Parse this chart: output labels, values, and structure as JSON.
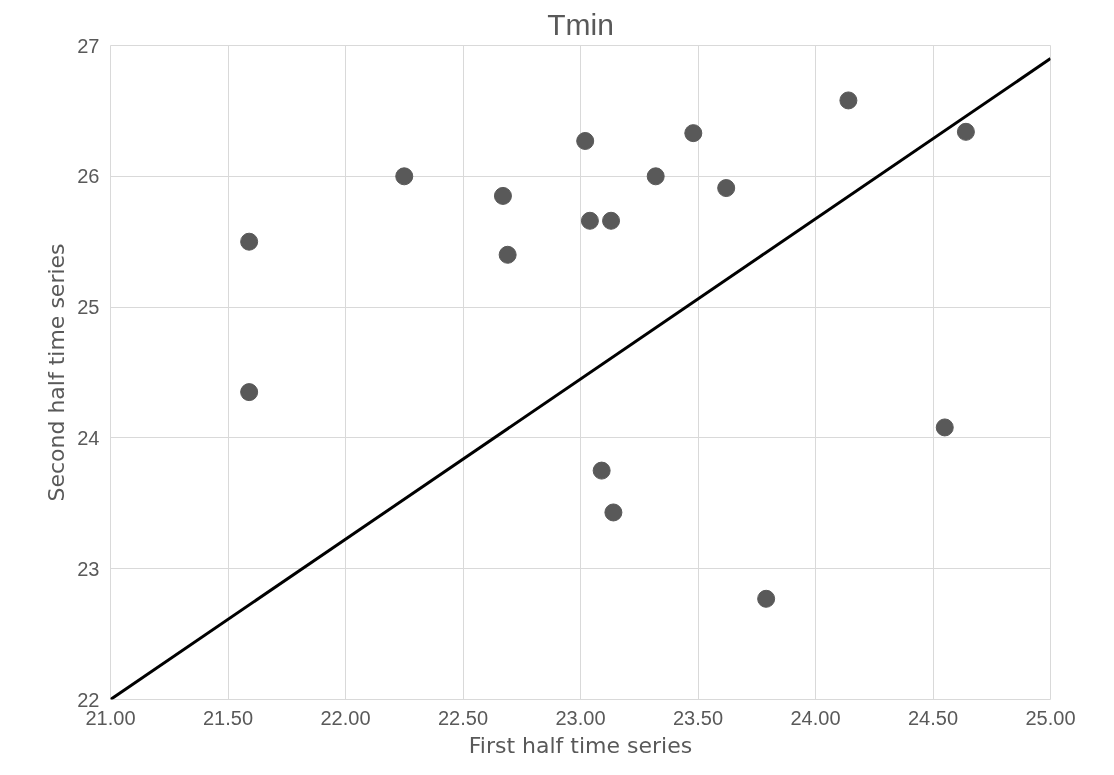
{
  "chart_data": {
    "type": "scatter",
    "title": "Tmin",
    "xlabel": "First half time series",
    "ylabel": "Second half time series",
    "xlim": [
      21,
      25
    ],
    "ylim": [
      22,
      27
    ],
    "xticks": [
      {
        "value": 21,
        "label": "21.00"
      },
      {
        "value": 21.5,
        "label": "21.50"
      },
      {
        "value": 22,
        "label": "22.00"
      },
      {
        "value": 22.5,
        "label": "22.50"
      },
      {
        "value": 23,
        "label": "23.00"
      },
      {
        "value": 23.5,
        "label": "23.50"
      },
      {
        "value": 24,
        "label": "24.00"
      },
      {
        "value": 24.5,
        "label": "24.50"
      },
      {
        "value": 25,
        "label": "25.00"
      }
    ],
    "yticks": [
      22,
      23,
      24,
      25,
      26,
      27
    ],
    "grid": true,
    "series": [
      {
        "marker": "circle",
        "color": "#595959",
        "x": [
          21.59,
          21.59,
          22.25,
          22.67,
          22.69,
          23.02,
          23.04,
          23.13,
          23.32,
          23.48,
          23.62,
          23.09,
          23.14,
          23.79,
          24.14,
          24.55,
          24.64
        ],
        "values": [
          25.5,
          24.35,
          26.0,
          25.85,
          25.4,
          26.27,
          25.66,
          25.66,
          26.0,
          26.33,
          25.91,
          23.75,
          23.43,
          22.77,
          26.58,
          24.08,
          26.34
        ]
      },
      {
        "type": "line",
        "color": "#000000",
        "x": [
          21,
          25
        ],
        "values": [
          22,
          26.9
        ]
      }
    ]
  }
}
